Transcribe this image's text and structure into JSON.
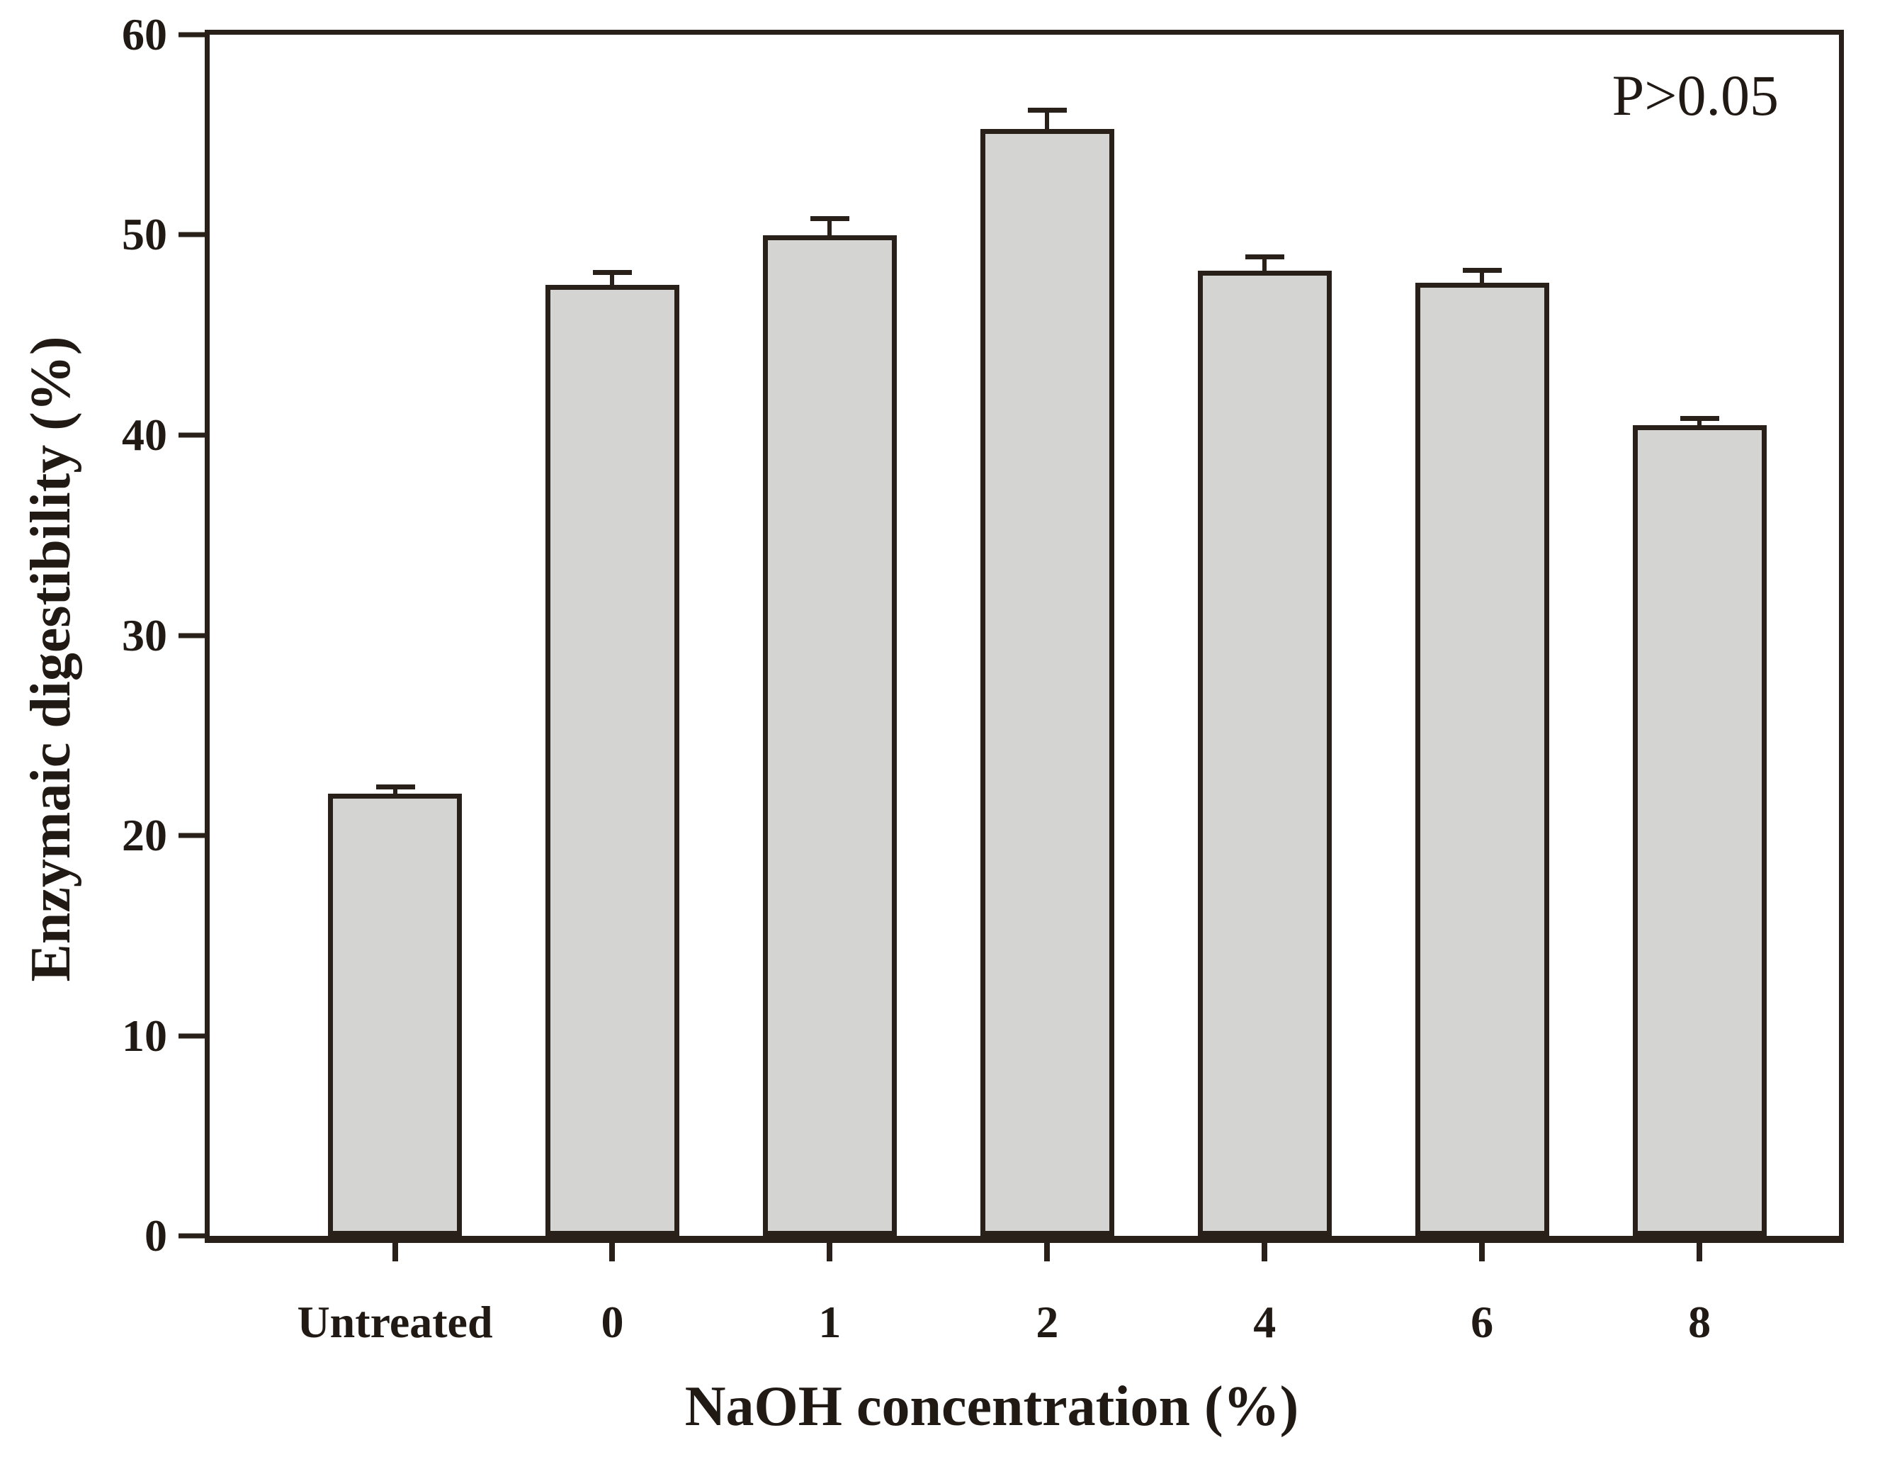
{
  "chart_data": {
    "type": "bar",
    "title": "",
    "annotation": "P>0.05",
    "xlabel": "NaOH concentration (%)",
    "ylabel": "Enzymaic digestibility (%)",
    "categories": [
      "Untreated",
      "0",
      "1",
      "2",
      "4",
      "6",
      "8"
    ],
    "values": [
      22.1,
      47.5,
      50.0,
      55.3,
      48.2,
      47.6,
      40.5
    ],
    "errors": [
      0.3,
      0.6,
      0.8,
      0.9,
      0.7,
      0.6,
      0.3
    ],
    "ylim": [
      0,
      60
    ],
    "yticks": [
      0,
      10,
      20,
      30,
      40,
      50,
      60
    ],
    "grid": false,
    "legend": "none",
    "error_bars": "upper caps only",
    "colors": {
      "bar_fill": "#d4d4d3",
      "line": "#292019",
      "text": "#211a14",
      "background": "#ffffff"
    }
  }
}
